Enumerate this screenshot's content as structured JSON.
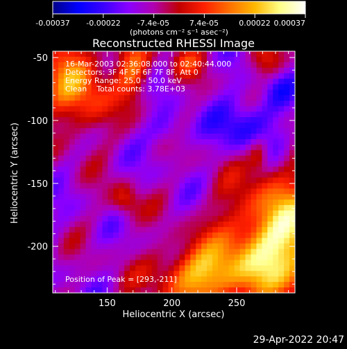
{
  "colorbar": {
    "tick_labels": [
      "-0.00037",
      "-0.00022",
      "-7.4e-05",
      "7.4e-05",
      "0.00022",
      "0.00037"
    ],
    "unit_label": "(photons cm⁻² s⁻¹ asec⁻²)",
    "range": [
      -0.00037,
      0.00037
    ],
    "stops": [
      "#000088",
      "#0000ff",
      "#3a00ff",
      "#8a00ff",
      "#b000b0",
      "#c00000",
      "#ff2000",
      "#ff7000",
      "#ffb800",
      "#ffff88",
      "#ffffff"
    ]
  },
  "info": {
    "line1": "16-Mar-2003 02:36:08.000 to 02:40:44.000",
    "line2": "Detectors: 3F 4F 5F 6F 7F 8F, Att 0",
    "line3": "Energy Range: 25.0 - 50.0 keV",
    "line4": "Clean    Total counts: 3.78E+03",
    "peak": "Position of Peak = [293,-211]"
  },
  "footer": {
    "timestamp": "29-Apr-2022 20:47"
  },
  "chart_data": {
    "type": "heatmap",
    "title": "Reconstructed RHESSI Image",
    "xlabel": "Heliocentric X (arcsec)",
    "ylabel": "Heliocentric Y (arcsec)",
    "xlim": [
      108,
      295
    ],
    "ylim": [
      -237,
      -45
    ],
    "x_ticks": [
      150,
      200,
      250
    ],
    "y_ticks": [
      -50,
      -100,
      -150,
      -200
    ],
    "peak": [
      293,
      -211
    ],
    "grid": false
  }
}
